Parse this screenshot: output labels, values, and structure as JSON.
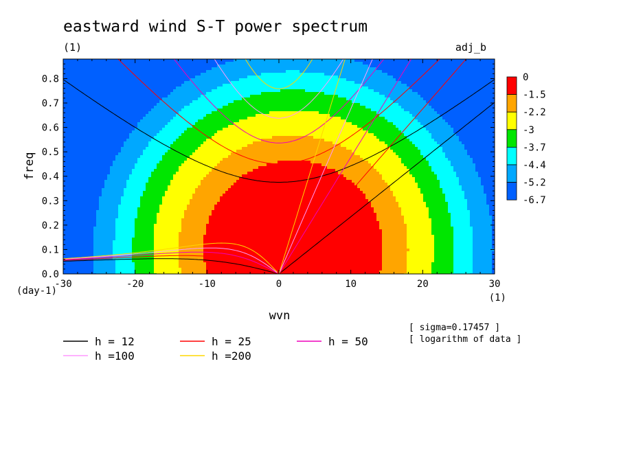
{
  "chart_data": {
    "type": "heatmap",
    "title": "eastward wind S-T power spectrum",
    "subtitle_left": "(1)",
    "subtitle_right": "adj_b",
    "xlabel": "wvn",
    "ylabel": "freq",
    "x_unit": "(1)",
    "y_unit": "(day-1)",
    "xlim": [
      -30,
      30
    ],
    "ylim": [
      0,
      0.88
    ],
    "x_ticks": [
      -30,
      -20,
      -10,
      0,
      10,
      20,
      30
    ],
    "x_tick_labels": [
      "-30",
      "-20",
      "-10",
      "0",
      "10",
      "20",
      "30"
    ],
    "y_ticks": [
      0,
      0.1,
      0.2,
      0.3,
      0.4,
      0.5,
      0.6,
      0.7,
      0.8
    ],
    "y_tick_labels": [
      "0.0",
      "0.1",
      "0.2",
      "0.3",
      "0.4",
      "0.5",
      "0.6",
      "0.7",
      "0.8"
    ],
    "colorbar": {
      "labels": [
        "0",
        "-1.5",
        "-2.2",
        "-3",
        "-3.7",
        "-4.4",
        "-5.2",
        "-6.7"
      ],
      "colors": [
        "#ff0000",
        "#ffa500",
        "#ffff00",
        "#00e600",
        "#00ffff",
        "#00a8ff",
        "#0060ff"
      ]
    },
    "color_scale": {
      "levels": [
        -1.5,
        -2.2,
        -3,
        -3.7,
        -4.4,
        -5.2
      ],
      "colors_high_to_low": [
        "#ff0000",
        "#ffa500",
        "#ffff00",
        "#00e600",
        "#00ffff",
        "#00a8ff",
        "#0060ff"
      ]
    },
    "dispersion_curves": [
      {
        "label": "h = 12",
        "h": 12,
        "color": "#000000"
      },
      {
        "label": "h = 25",
        "h": 25,
        "color": "#ff0000"
      },
      {
        "label": "h = 50",
        "h": 50,
        "color": "#ee00bb"
      },
      {
        "label": "h =100",
        "h": 100,
        "color": "#ff99ff"
      },
      {
        "label": "h =200",
        "h": 200,
        "color": "#ffd700"
      }
    ],
    "notes": [
      "[ sigma=0.17457 ]",
      "[ logarithm of data ]"
    ]
  }
}
